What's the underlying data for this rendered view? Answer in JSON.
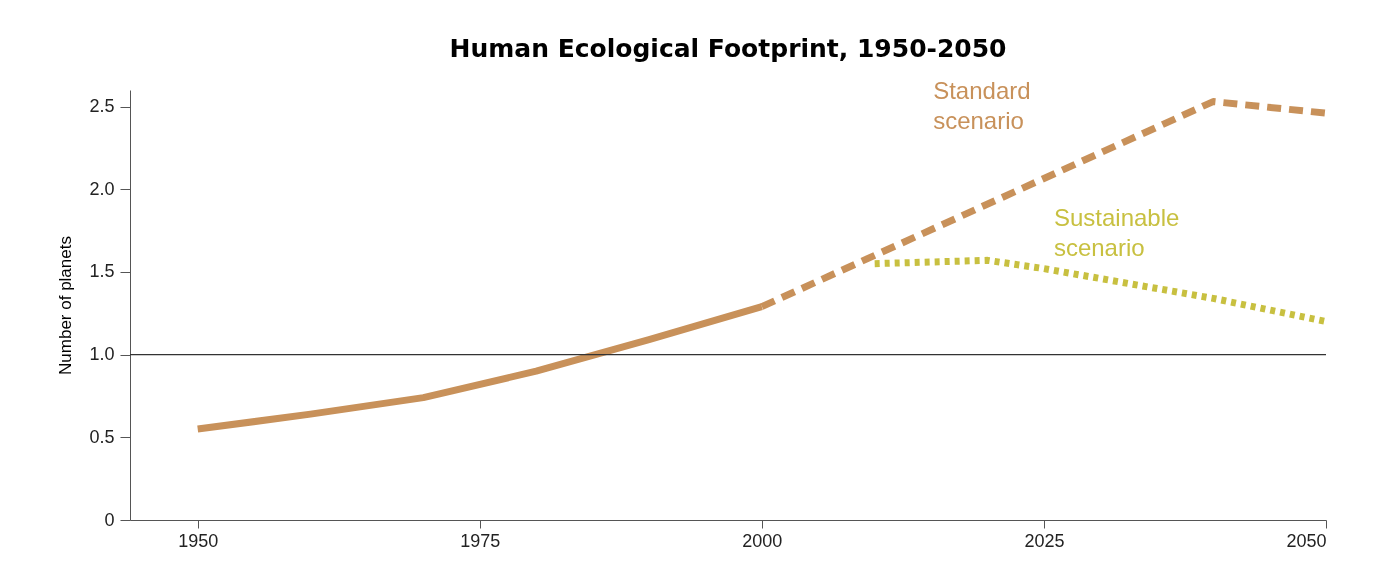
{
  "chart_data": {
    "type": "line",
    "title": "Human Ecological Footprint, 1950-2050",
    "ylabel": "Number of planets",
    "xlim": [
      1944,
      2050
    ],
    "xticks": [
      1950,
      1975,
      2000,
      2025,
      2050
    ],
    "ylim": [
      0,
      2.6
    ],
    "yticks": [
      0,
      0.5,
      {
        "value": 1,
        "label": "1.0"
      },
      1.5,
      {
        "value": 2,
        "label": "2.0"
      },
      2.5
    ],
    "grid": false,
    "marker": "none",
    "ref_lines": [
      {
        "axis": "y",
        "value": 1,
        "color": "#333333"
      }
    ],
    "series": [
      {
        "color": "#c8915a",
        "line_style": "solid",
        "x": [
          1950,
          1960,
          1970,
          1980,
          1990,
          2000
        ],
        "values": [
          0.55,
          0.64,
          0.74,
          0.9,
          1.09,
          1.29
        ]
      },
      {
        "name": "Standard scenario",
        "color": "#c8915a",
        "line_style": "dashed",
        "x": [
          2000,
          2040,
          2050
        ],
        "values": [
          1.29,
          2.53,
          2.46
        ]
      },
      {
        "name": "Sustainable scenario",
        "color": "#c8c040",
        "line_style": "dotted",
        "x": [
          2010,
          2020,
          2025,
          2030,
          2040,
          2050
        ],
        "values": [
          1.55,
          1.57,
          1.52,
          1.46,
          1.34,
          1.2
        ]
      }
    ]
  }
}
